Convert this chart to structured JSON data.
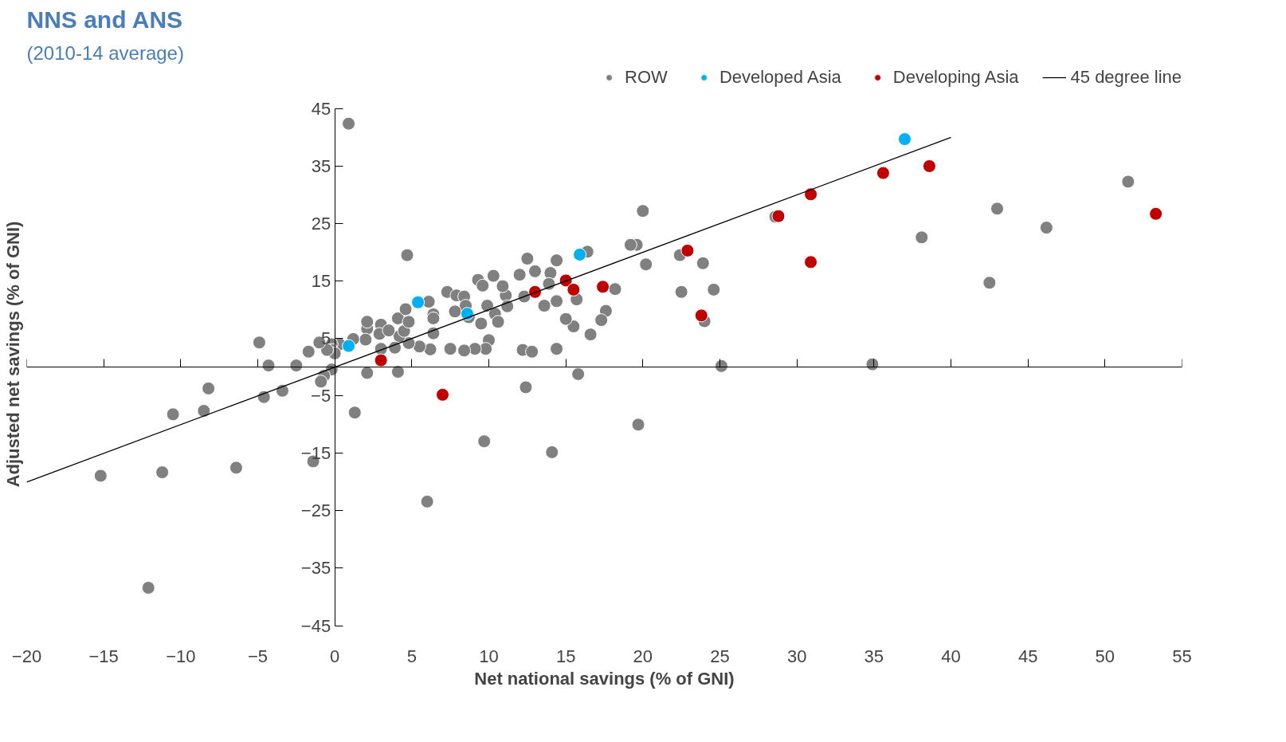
{
  "chart_data": {
    "type": "scatter",
    "title": "NNS and ANS",
    "subtitle": "(2010-14 average)",
    "xlabel": "Net national savings (% of GNI)",
    "ylabel": "Adjusted net savings (% of GNI)",
    "xlim": [
      -20,
      55
    ],
    "ylim": [
      -45,
      45
    ],
    "xticks": [
      -20,
      -15,
      -10,
      -5,
      0,
      5,
      10,
      15,
      20,
      25,
      30,
      35,
      40,
      45,
      50,
      55
    ],
    "yticks": [
      -45,
      -35,
      -25,
      -15,
      -5,
      5,
      15,
      25,
      35,
      45
    ],
    "grid": false,
    "legend": "top right",
    "marker": "circle",
    "series": [
      {
        "name": "ROW",
        "color": "#808080",
        "x": [
          0.9,
          4.7,
          20,
          16.4,
          19.6,
          19.2,
          20.2,
          22.4,
          23.9,
          22.5,
          24.6,
          24,
          18.2,
          17.6,
          17.3,
          16.6,
          15.7,
          15.5,
          15,
          15.8,
          14.4,
          14.4,
          14,
          13.9,
          14.4,
          13.6,
          13,
          12.5,
          12,
          12.3,
          11.1,
          11.2,
          10.9,
          10.3,
          9.3,
          9.6,
          9.9,
          10.4,
          10.6,
          9.5,
          10,
          9.8,
          9.1,
          8.4,
          7.5,
          6.2,
          5.5,
          4.8,
          4.2,
          4.5,
          4.1,
          4.8,
          4.6,
          6.1,
          6.4,
          6.4,
          6.4,
          7.3,
          7.9,
          8.4,
          8.5,
          7.8,
          8.7,
          3.9,
          3,
          2.9,
          3,
          3.5,
          2.1,
          2.1,
          2,
          1.2,
          0.3,
          -0.2,
          -0.2,
          0,
          -0.5,
          -1,
          -1.7,
          -2.5,
          -4.3,
          -4.9,
          -0.2,
          -0.7,
          -0.9,
          2.1,
          4.1,
          1.3,
          -3.4,
          -4.6,
          -8.2,
          -8.5,
          -10.5,
          -15.2,
          -11.2,
          -6.4,
          -1.4,
          -12.1,
          6,
          9.7,
          14.1,
          19.7,
          12.4,
          12.2,
          12.8,
          25.1,
          34.9,
          38.1,
          42.5,
          43,
          46.2,
          51.5,
          28.6
        ],
        "values": [
          42.4,
          19.5,
          27.2,
          20.1,
          21.3,
          21.3,
          17.9,
          19.5,
          18.1,
          13.1,
          13.5,
          8,
          13.6,
          9.8,
          8.2,
          5.7,
          11.8,
          7.1,
          8.4,
          -1.2,
          3.2,
          18.6,
          16.4,
          14.5,
          11.5,
          10.7,
          16.7,
          18.9,
          16.1,
          12.3,
          12.5,
          10.6,
          14.1,
          15.9,
          15.2,
          14.2,
          10.7,
          9.3,
          7.9,
          7.6,
          4.7,
          3.2,
          3.2,
          2.9,
          3.2,
          3.1,
          3.6,
          4.2,
          5.4,
          6.3,
          8.5,
          7.9,
          10.1,
          11.4,
          9.2,
          8.5,
          5.9,
          13.1,
          12.5,
          12.3,
          10.7,
          9.7,
          8.7,
          3.4,
          7.4,
          5.8,
          3.2,
          6.4,
          6.7,
          7.9,
          4.8,
          4.9,
          4,
          4,
          3,
          2.4,
          3,
          4.3,
          2.7,
          0.3,
          0.3,
          4.3,
          -0.4,
          -1.5,
          -2.5,
          -1,
          -0.8,
          -7.9,
          -4.1,
          -5.2,
          -3.7,
          -7.6,
          -8.2,
          -18.9,
          -18.3,
          -17.5,
          -16.4,
          -38.4,
          -23.4,
          -12.9,
          -14.8,
          -10,
          -3.5,
          3,
          2.7,
          0.2,
          0.5,
          22.6,
          14.7,
          27.6,
          24.3,
          32.3,
          26.2
        ]
      },
      {
        "name": "Developed Asia",
        "color": "#00b0f0",
        "x": [
          0.9,
          5.4,
          8.6,
          15.9,
          37
        ],
        "values": [
          3.7,
          11.3,
          9.3,
          19.6,
          39.7
        ]
      },
      {
        "name": "Developing Asia",
        "color": "#c00000",
        "x": [
          3,
          7,
          13,
          15,
          15.5,
          17.4,
          22.9,
          23.8,
          28.8,
          30.9,
          30.9,
          35.6,
          38.6,
          53.3
        ],
        "values": [
          1.2,
          -4.8,
          13.1,
          15.1,
          13.5,
          14,
          20.3,
          9,
          26.3,
          30.1,
          18.3,
          33.8,
          35,
          26.7
        ]
      },
      {
        "name": "45 degree line",
        "type": "line",
        "color": "#000000",
        "marker": "none",
        "x": [
          -20,
          40
        ],
        "values": [
          -20,
          40
        ]
      }
    ]
  }
}
